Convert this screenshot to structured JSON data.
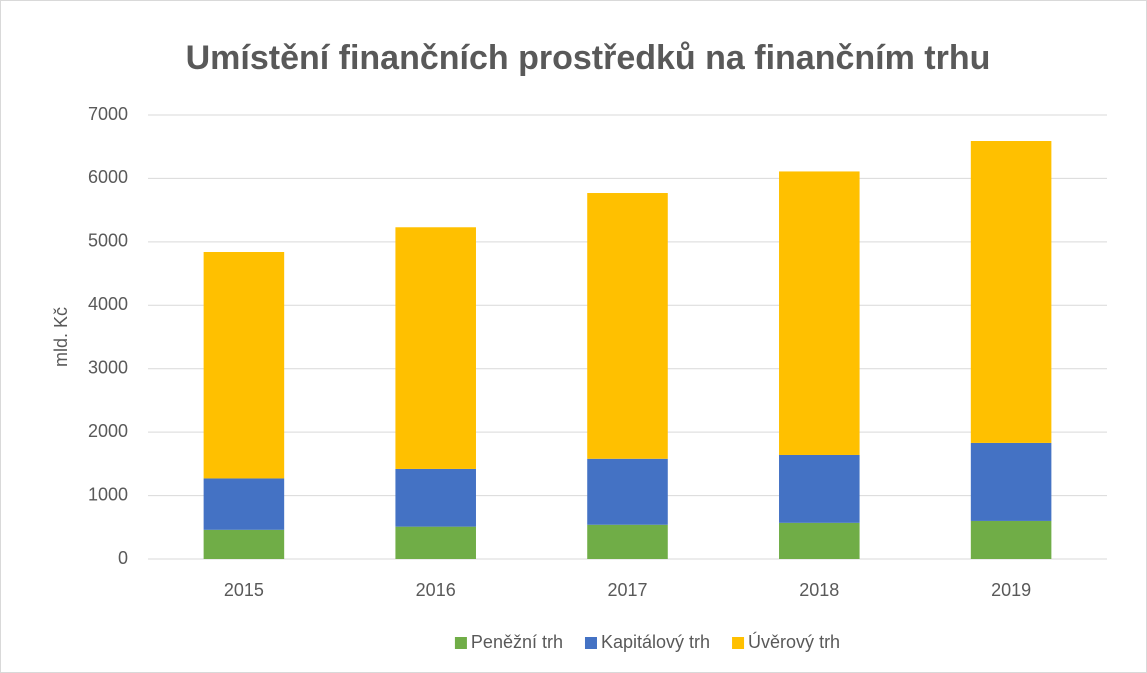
{
  "chart_data": {
    "type": "stacked_bar",
    "title": "Umístění finančních prostředků na finančním trhu",
    "y_label": "mld. Kč",
    "categories": [
      "2015",
      "2016",
      "2017",
      "2018",
      "2019"
    ],
    "series": [
      {
        "name": "Peněžní trh",
        "color": "#70ad47",
        "values": [
          460,
          510,
          540,
          570,
          600
        ]
      },
      {
        "name": "Kapitálový trh",
        "color": "#4472c4",
        "values": [
          810,
          910,
          1040,
          1070,
          1230
        ]
      },
      {
        "name": "Úvěrový trh",
        "color": "#ffc000",
        "values": [
          3570,
          3810,
          4190,
          4470,
          4760
        ]
      }
    ],
    "ylim": [
      0,
      7000
    ],
    "yticks": [
      0,
      1000,
      2000,
      3000,
      4000,
      5000,
      6000,
      7000
    ],
    "grid": true,
    "legend": "bottom"
  }
}
